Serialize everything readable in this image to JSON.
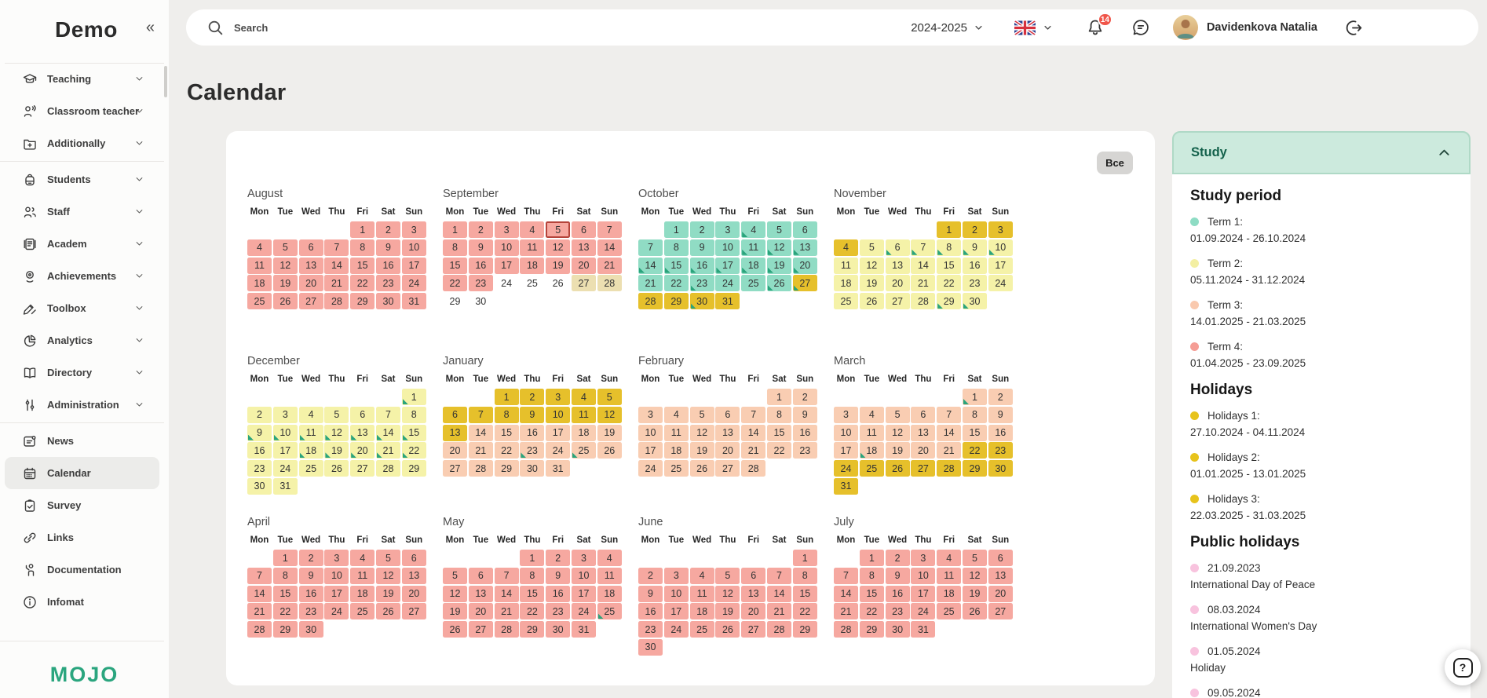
{
  "sidebar": {
    "logo": "Demo",
    "collapse_glyph": "«",
    "brand": "MOJO",
    "groups": [
      {
        "items": [
          {
            "id": "teaching",
            "label": "Teaching",
            "icon": "graduation-cap",
            "chevron": true
          },
          {
            "id": "classroom-teacher",
            "label": "Classroom teacher",
            "icon": "person-speaking",
            "chevron": true
          },
          {
            "id": "additionally",
            "label": "Additionally",
            "icon": "folder-plus",
            "chevron": true
          }
        ]
      },
      {
        "items": [
          {
            "id": "students",
            "label": "Students",
            "icon": "backpack",
            "chevron": true
          },
          {
            "id": "staff",
            "label": "Staff",
            "icon": "people",
            "chevron": true
          },
          {
            "id": "academ",
            "label": "Academ",
            "icon": "journal",
            "chevron": true
          },
          {
            "id": "achievements",
            "label": "Achievements",
            "icon": "medal",
            "chevron": true
          },
          {
            "id": "toolbox",
            "label": "Toolbox",
            "icon": "pencils",
            "chevron": true
          },
          {
            "id": "analytics",
            "label": "Analytics",
            "icon": "pie-chart",
            "chevron": true
          },
          {
            "id": "directory",
            "label": "Directory",
            "icon": "open-book",
            "chevron": true
          },
          {
            "id": "administration",
            "label": "Administration",
            "icon": "sliders",
            "chevron": true
          }
        ]
      },
      {
        "items": [
          {
            "id": "news",
            "label": "News",
            "icon": "news",
            "chevron": false
          },
          {
            "id": "calendar",
            "label": "Calendar",
            "icon": "calendar",
            "chevron": false,
            "active": true
          },
          {
            "id": "survey",
            "label": "Survey",
            "icon": "clipboard-check",
            "chevron": false
          },
          {
            "id": "links",
            "label": "Links",
            "icon": "link",
            "chevron": false
          },
          {
            "id": "documentation",
            "label": "Documentation",
            "icon": "person-hand",
            "chevron": false
          },
          {
            "id": "infomat",
            "label": "Infomat",
            "icon": "info-circle",
            "chevron": false
          }
        ]
      }
    ]
  },
  "topbar": {
    "search_placeholder": "Search",
    "school_year": "2024-2025",
    "notifications_count": "14",
    "user_name": "Davidenkova Natalia"
  },
  "page": {
    "title": "Calendar"
  },
  "calendar": {
    "all_button_label": "Все",
    "weekdays": [
      "Mon",
      "Tue",
      "Wed",
      "Thu",
      "Fri",
      "Sat",
      "Sun"
    ],
    "colors": {
      "term1": "#90dcc4",
      "term2": "#f5f2a8",
      "term3": "#f9cdb2",
      "term4": "#f6a8a0",
      "holiday": "#e6c02b",
      "weekend_off": "#ecdfb1",
      "triangle": "#2aa47c",
      "today_border": "#b5443b"
    },
    "months": [
      {
        "name": "August",
        "start": 4,
        "days": 31,
        "spans": [
          [
            1,
            31,
            "term4"
          ]
        ],
        "triangles": []
      },
      {
        "name": "September",
        "start": 0,
        "days": 30,
        "spans": [
          [
            1,
            23,
            "term4"
          ],
          [
            27,
            28,
            "weekend_off"
          ]
        ],
        "triangles": [],
        "today": 5
      },
      {
        "name": "October",
        "start": 1,
        "days": 31,
        "spans": [
          [
            1,
            26,
            "term1"
          ],
          [
            27,
            31,
            "holiday"
          ]
        ],
        "triangles": [
          4,
          11,
          12,
          13,
          14,
          15,
          16,
          17,
          18,
          19,
          20,
          23,
          26,
          27,
          30
        ]
      },
      {
        "name": "November",
        "start": 4,
        "days": 30,
        "spans": [
          [
            1,
            4,
            "holiday"
          ],
          [
            5,
            30,
            "term2"
          ]
        ],
        "triangles": [
          6,
          7,
          8,
          9,
          10,
          29,
          30
        ]
      },
      {
        "name": "December",
        "start": 6,
        "days": 31,
        "spans": [
          [
            1,
            31,
            "term2"
          ]
        ],
        "triangles": [
          1,
          9,
          10,
          11,
          12,
          13,
          14,
          15,
          18,
          19,
          20,
          21,
          22
        ]
      },
      {
        "name": "January",
        "start": 2,
        "days": 31,
        "spans": [
          [
            1,
            13,
            "holiday"
          ],
          [
            14,
            31,
            "term3"
          ]
        ],
        "triangles": [
          23,
          25
        ]
      },
      {
        "name": "February",
        "start": 5,
        "days": 28,
        "spans": [
          [
            1,
            28,
            "term3"
          ]
        ],
        "triangles": []
      },
      {
        "name": "March",
        "start": 5,
        "days": 31,
        "spans": [
          [
            1,
            21,
            "term3"
          ],
          [
            22,
            31,
            "holiday"
          ]
        ],
        "triangles": [
          1,
          18
        ]
      },
      {
        "name": "April",
        "start": 1,
        "days": 30,
        "spans": [
          [
            1,
            30,
            "term4"
          ]
        ],
        "triangles": []
      },
      {
        "name": "May",
        "start": 3,
        "days": 31,
        "spans": [
          [
            1,
            31,
            "term4"
          ]
        ],
        "triangles": [
          25
        ]
      },
      {
        "name": "June",
        "start": 6,
        "days": 30,
        "spans": [
          [
            1,
            30,
            "term4"
          ]
        ],
        "triangles": []
      },
      {
        "name": "July",
        "start": 1,
        "days": 31,
        "spans": [
          [
            1,
            31,
            "term4"
          ]
        ],
        "triangles": []
      }
    ]
  },
  "panel": {
    "title": "Study",
    "sections": [
      {
        "heading": "Study period",
        "entries": [
          {
            "bullet": "#8edcc4",
            "label": "Term 1:",
            "detail": "01.09.2024 - 26.10.2024"
          },
          {
            "bullet": "#f3efa2",
            "label": "Term 2:",
            "detail": "05.11.2024 - 31.12.2024"
          },
          {
            "bullet": "#f9c9ae",
            "label": "Term 3:",
            "detail": "14.01.2025 - 21.03.2025"
          },
          {
            "bullet": "#f59d95",
            "label": "Term 4:",
            "detail": "01.04.2025 - 23.09.2025"
          }
        ]
      },
      {
        "heading": "Holidays",
        "entries": [
          {
            "bullet": "#e7c31c",
            "label": "Holidays 1:",
            "detail": "27.10.2024 - 04.11.2024"
          },
          {
            "bullet": "#e7c31c",
            "label": "Holidays 2:",
            "detail": "01.01.2025 - 13.01.2025"
          },
          {
            "bullet": "#e7c31c",
            "label": "Holidays 3:",
            "detail": "22.03.2025 - 31.03.2025"
          }
        ]
      },
      {
        "heading": "Public holidays",
        "entries": [
          {
            "bullet": "#f8c3de",
            "label": "21.09.2023",
            "detail": "International Day of Peace"
          },
          {
            "bullet": "#f8c3de",
            "label": "08.03.2024",
            "detail": "International Women's Day"
          },
          {
            "bullet": "#f8c3de",
            "label": "01.05.2024",
            "detail": "Holiday"
          },
          {
            "bullet": "#f8c3de",
            "label": "09.05.2024",
            "detail": ""
          }
        ]
      }
    ]
  },
  "help_button": {
    "glyph": "?"
  }
}
